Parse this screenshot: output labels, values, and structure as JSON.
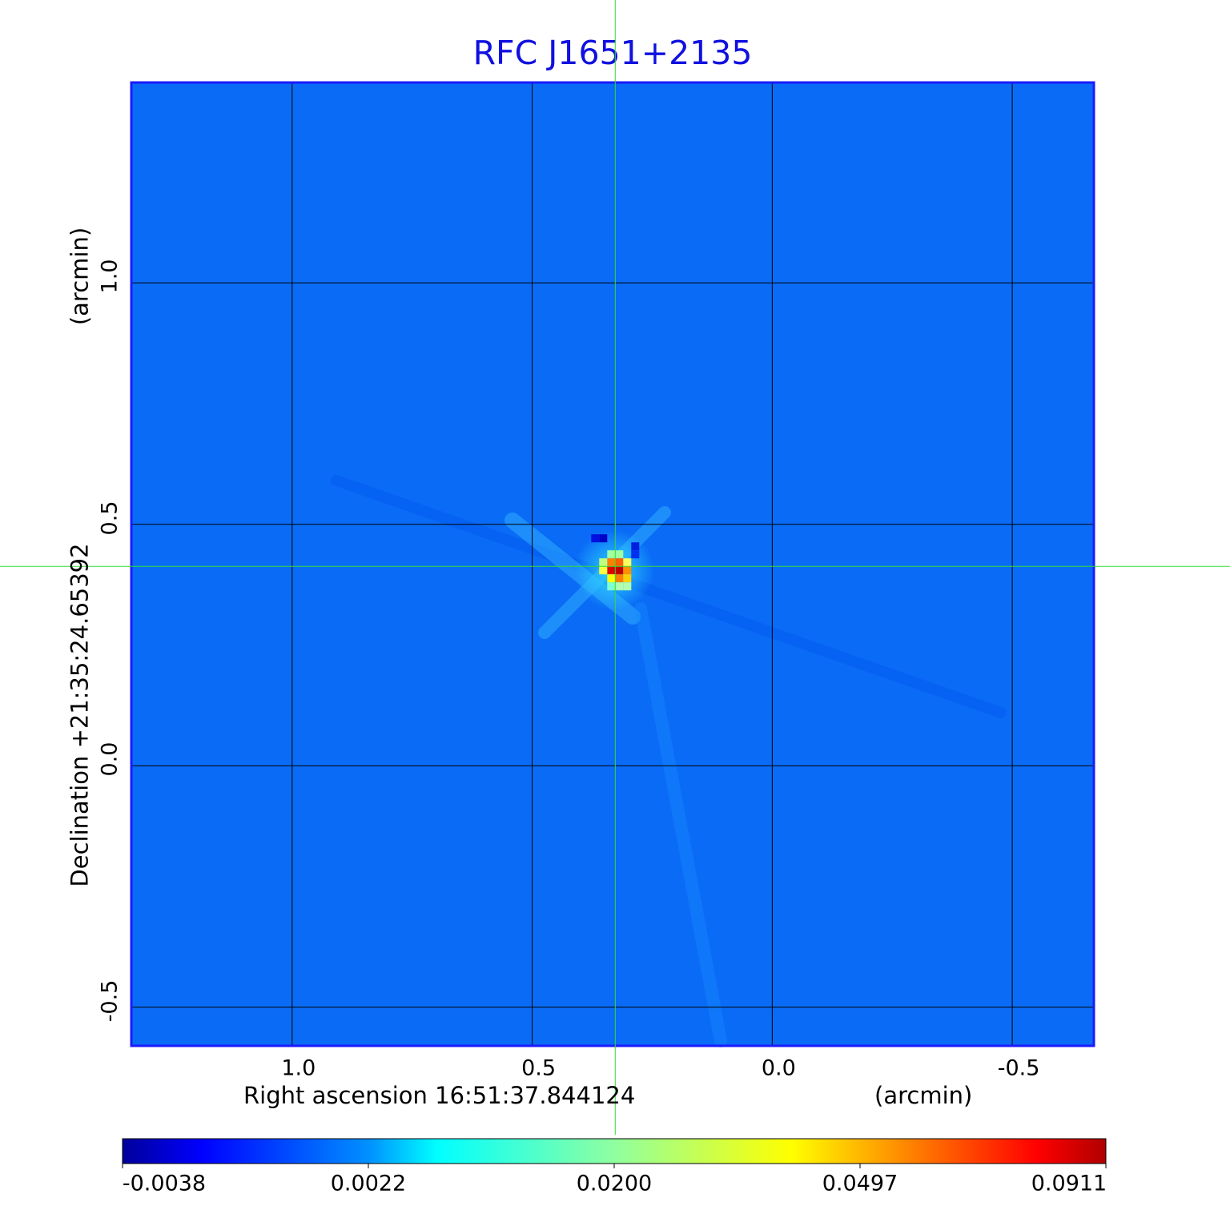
{
  "chart_data": {
    "type": "heatmap",
    "title": "RFC J1651+2135",
    "xlabel": "Right ascension  16:51:37.844124",
    "xunit": "(arcmin)",
    "ylabel": "Declination  +21:35:24.65392",
    "yunit": "(arcmin)",
    "xlim": [
      1.335,
      -0.67
    ],
    "ylim": [
      -0.58,
      1.415
    ],
    "xticks": [
      1.0,
      0.5,
      0.0,
      -0.5
    ],
    "xtick_labels": [
      "1.0",
      "0.5",
      "0.0",
      "-0.5"
    ],
    "yticks": [
      1.0,
      0.5,
      0.0,
      -0.5
    ],
    "ytick_labels": [
      "1.0",
      "0.5",
      "0.0",
      "-0.5"
    ],
    "grid": true,
    "crosshair": {
      "x": 0.327,
      "y": 0.413
    },
    "peak": {
      "x": 0.327,
      "y": 0.413,
      "value": 0.0911
    },
    "background_value": 0.0,
    "colormap": "jet",
    "colorbar": {
      "placement": "bottom",
      "min": -0.0038,
      "max": 0.0911,
      "tick_labels": [
        "-0.0038",
        "0.0022",
        "0.0200",
        "0.0497",
        "0.0911"
      ]
    },
    "colors": {
      "title": "#1010e0",
      "frame": "#1a1aff",
      "crosshair": "#33dd33",
      "background": "#0a6cf6"
    }
  }
}
